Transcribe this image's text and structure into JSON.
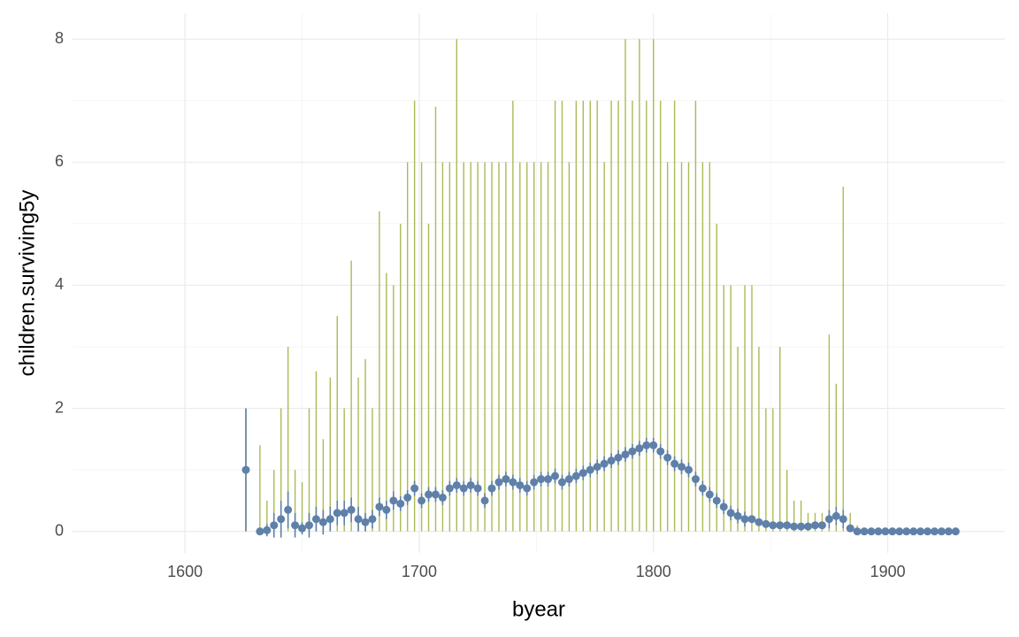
{
  "chart_data": {
    "type": "range-point",
    "x_label": "byear",
    "y_label": "children.surviving5y",
    "x": [
      1626,
      1629,
      1632,
      1635,
      1638,
      1641,
      1644,
      1647,
      1650,
      1653,
      1656,
      1659,
      1662,
      1665,
      1668,
      1671,
      1674,
      1677,
      1680,
      1683,
      1686,
      1689,
      1692,
      1695,
      1698,
      1701,
      1704,
      1707,
      1710,
      1713,
      1716,
      1719,
      1722,
      1725,
      1728,
      1731,
      1734,
      1737,
      1740,
      1743,
      1746,
      1749,
      1752,
      1755,
      1758,
      1761,
      1764,
      1767,
      1770,
      1773,
      1776,
      1779,
      1782,
      1785,
      1788,
      1791,
      1794,
      1797,
      1800,
      1803,
      1806,
      1809,
      1812,
      1815,
      1818,
      1821,
      1824,
      1827,
      1830,
      1833,
      1836,
      1839,
      1842,
      1845,
      1848,
      1851,
      1854,
      1857,
      1860,
      1863,
      1866,
      1869,
      1872,
      1875,
      1878,
      1881,
      1884,
      1887,
      1890,
      1893,
      1896,
      1899,
      1902,
      1905,
      1908,
      1911,
      1914,
      1917,
      1920,
      1923,
      1926,
      1929
    ],
    "max_values": [
      2,
      null,
      1.4,
      0.5,
      1.0,
      2.0,
      3.0,
      1.0,
      0.8,
      2.0,
      2.6,
      1.5,
      2.5,
      3.5,
      2.0,
      4.4,
      2.5,
      2.8,
      2.0,
      5.2,
      4.2,
      4.0,
      5.0,
      6.0,
      7.0,
      6.0,
      5.0,
      6.9,
      6.0,
      6.0,
      8.0,
      6.0,
      6.0,
      6.0,
      6.0,
      6.0,
      6.0,
      6.0,
      7.0,
      6.0,
      6.0,
      6.0,
      6.0,
      6.0,
      7.0,
      7.0,
      6.0,
      7.0,
      7.0,
      7.0,
      7.0,
      6.0,
      7.0,
      7.0,
      8.0,
      7.0,
      8.0,
      7.0,
      8.0,
      7.0,
      6.0,
      7.0,
      6.0,
      6.0,
      7.0,
      6.0,
      6.0,
      5.0,
      4.0,
      4.0,
      3.0,
      4.0,
      4.0,
      3.0,
      2.0,
      2.0,
      3.0,
      1.0,
      0.5,
      0.5,
      0.3,
      0.3,
      0.3,
      3.2,
      2.4,
      5.6,
      0.3,
      0.1,
      0,
      0,
      0,
      0,
      0,
      0,
      0,
      0,
      0,
      0,
      0,
      0,
      0,
      0
    ],
    "mean_values": [
      1.0,
      null,
      0.0,
      0.02,
      0.1,
      0.2,
      0.35,
      0.1,
      0.05,
      0.1,
      0.2,
      0.15,
      0.2,
      0.3,
      0.3,
      0.35,
      0.2,
      0.15,
      0.2,
      0.4,
      0.35,
      0.5,
      0.45,
      0.55,
      0.7,
      0.5,
      0.6,
      0.6,
      0.55,
      0.7,
      0.75,
      0.7,
      0.75,
      0.7,
      0.5,
      0.7,
      0.8,
      0.85,
      0.8,
      0.75,
      0.7,
      0.8,
      0.85,
      0.85,
      0.9,
      0.8,
      0.85,
      0.9,
      0.95,
      1.0,
      1.05,
      1.1,
      1.15,
      1.2,
      1.25,
      1.3,
      1.35,
      1.4,
      1.4,
      1.3,
      1.2,
      1.1,
      1.05,
      1.0,
      0.85,
      0.7,
      0.6,
      0.5,
      0.4,
      0.3,
      0.25,
      0.2,
      0.2,
      0.15,
      0.12,
      0.1,
      0.1,
      0.1,
      0.08,
      0.08,
      0.08,
      0.1,
      0.1,
      0.2,
      0.25,
      0.2,
      0.05,
      0.0,
      0,
      0,
      0,
      0,
      0,
      0,
      0,
      0,
      0,
      0,
      0,
      0,
      0,
      0
    ],
    "error": [
      1.0,
      null,
      0,
      0.1,
      0.2,
      0.3,
      0.3,
      0.2,
      0.1,
      0.2,
      0.2,
      0.2,
      0.2,
      0.2,
      0.2,
      0.2,
      0.2,
      0.15,
      0.15,
      0.15,
      0.15,
      0.15,
      0.12,
      0.12,
      0.12,
      0.12,
      0.12,
      0.12,
      0.12,
      0.12,
      0.12,
      0.12,
      0.12,
      0.12,
      0.12,
      0.12,
      0.12,
      0.12,
      0.12,
      0.12,
      0.12,
      0.12,
      0.12,
      0.12,
      0.12,
      0.12,
      0.12,
      0.12,
      0.12,
      0.12,
      0.12,
      0.12,
      0.12,
      0.12,
      0.12,
      0.12,
      0.12,
      0.12,
      0.12,
      0.12,
      0.12,
      0.12,
      0.12,
      0.12,
      0.12,
      0.12,
      0.12,
      0.12,
      0.12,
      0.12,
      0.12,
      0.12,
      0.05,
      0.05,
      0.05,
      0.05,
      0.05,
      0.05,
      0.05,
      0.05,
      0.05,
      0.05,
      0.05,
      0.15,
      0.15,
      0.15,
      0.05,
      0,
      0,
      0,
      0,
      0,
      0,
      0,
      0,
      0,
      0,
      0,
      0,
      0,
      0,
      0
    ],
    "range_color": "#a9bb55",
    "point_color": "#5f80a8",
    "xlim": [
      1552,
      1950
    ],
    "xticks": [
      1600,
      1700,
      1800,
      1900
    ],
    "xminorticks": [
      1650,
      1750,
      1850
    ],
    "ylim": [
      -0.35,
      8.42
    ],
    "yticks": [
      0,
      2,
      4,
      6,
      8
    ],
    "yminorticks": [
      1,
      3,
      5,
      7
    ],
    "grid": true
  }
}
